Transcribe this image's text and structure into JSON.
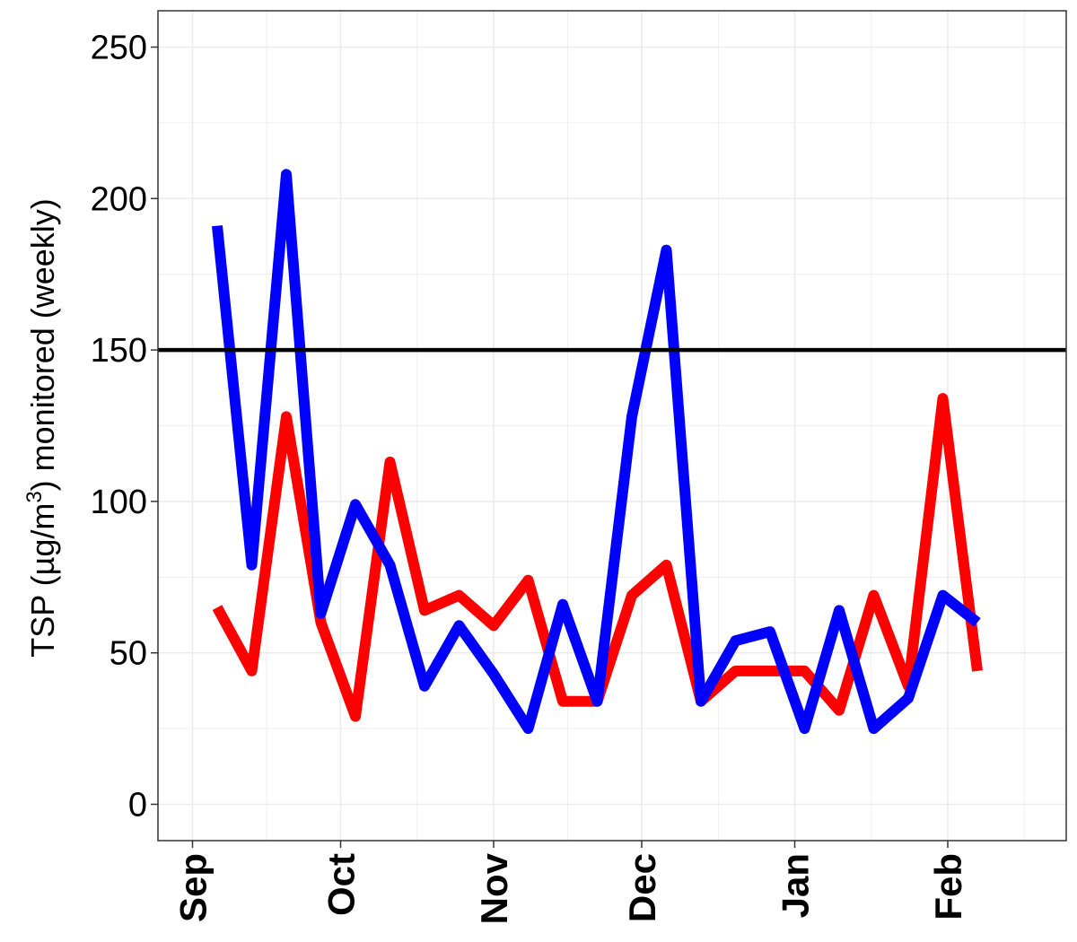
{
  "chart_data": {
    "type": "line",
    "title": "",
    "xlabel": "",
    "ylabel": {
      "prefix": "TSP (µg/m",
      "superscript": "3",
      "suffix": ") monitored (weekly)"
    },
    "ylim": [
      -12,
      262
    ],
    "yticks": [
      0,
      50,
      100,
      150,
      200,
      250
    ],
    "xlim": [
      "2023-08-25",
      "2024-02-25"
    ],
    "xticks": [
      {
        "label": "Sep",
        "date": "2023-09-01"
      },
      {
        "label": "Oct",
        "date": "2023-10-01"
      },
      {
        "label": "Nov",
        "date": "2023-11-01"
      },
      {
        "label": "Dec",
        "date": "2023-12-01"
      },
      {
        "label": "Jan",
        "date": "2024-01-01"
      },
      {
        "label": "Feb",
        "date": "2024-02-01"
      }
    ],
    "grid": true,
    "reference_line": {
      "y": 150,
      "color": "#000000"
    },
    "series": [
      {
        "color": "#ff0000",
        "points": [
          [
            "2023-09-06",
            65
          ],
          [
            "2023-09-13",
            44
          ],
          [
            "2023-09-20",
            128
          ],
          [
            "2023-09-27",
            60
          ],
          [
            "2023-10-04",
            29
          ],
          [
            "2023-10-11",
            113
          ],
          [
            "2023-10-18",
            64
          ],
          [
            "2023-10-25",
            69
          ],
          [
            "2023-11-01",
            59
          ],
          [
            "2023-11-08",
            74
          ],
          [
            "2023-11-15",
            34
          ],
          [
            "2023-11-22",
            34
          ],
          [
            "2023-11-29",
            69
          ],
          [
            "2023-12-06",
            79
          ],
          [
            "2023-12-13",
            34
          ],
          [
            "2023-12-20",
            44
          ],
          [
            "2023-12-27",
            44
          ],
          [
            "2024-01-03",
            44
          ],
          [
            "2024-01-10",
            31
          ],
          [
            "2024-01-17",
            69
          ],
          [
            "2024-01-24",
            39
          ],
          [
            "2024-01-31",
            134
          ],
          [
            "2024-02-07",
            44
          ]
        ]
      },
      {
        "color": "#0000ff",
        "points": [
          [
            "2023-09-06",
            191
          ],
          [
            "2023-09-13",
            79
          ],
          [
            "2023-09-20",
            208
          ],
          [
            "2023-09-27",
            63
          ],
          [
            "2023-10-04",
            99
          ],
          [
            "2023-10-11",
            79
          ],
          [
            "2023-10-18",
            39
          ],
          [
            "2023-10-25",
            59
          ],
          [
            "2023-11-01",
            43
          ],
          [
            "2023-11-08",
            25
          ],
          [
            "2023-11-15",
            66
          ],
          [
            "2023-11-22",
            34
          ],
          [
            "2023-11-29",
            128
          ],
          [
            "2023-12-06",
            183
          ],
          [
            "2023-12-13",
            34
          ],
          [
            "2023-12-20",
            54
          ],
          [
            "2023-12-27",
            57
          ],
          [
            "2024-01-03",
            25
          ],
          [
            "2024-01-10",
            64
          ],
          [
            "2024-01-17",
            25
          ],
          [
            "2024-01-24",
            35
          ],
          [
            "2024-01-31",
            69
          ],
          [
            "2024-02-07",
            60
          ]
        ]
      }
    ]
  }
}
